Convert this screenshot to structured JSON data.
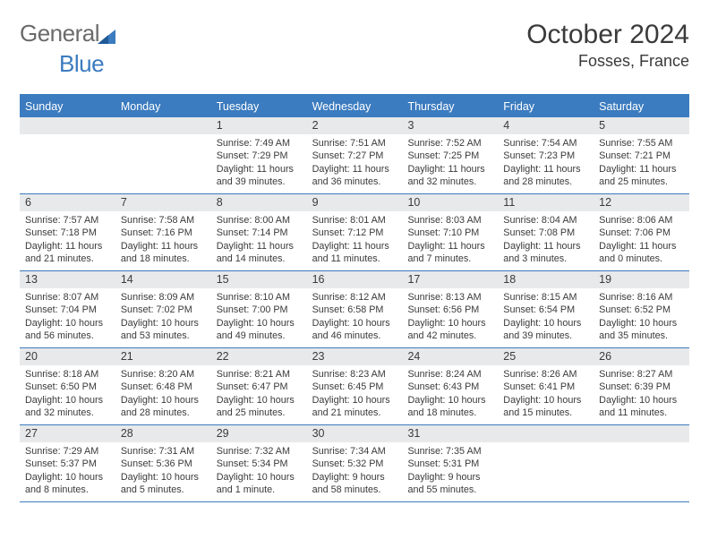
{
  "brand": {
    "general": "General",
    "blue": "Blue"
  },
  "title": {
    "month": "October 2024",
    "location": "Fosses, France"
  },
  "colors": {
    "accent": "#3b7bbf",
    "daynum_bg": "#e8e9ea",
    "text": "#3a3a3a",
    "weekday_text": "#ffffff",
    "background": "#ffffff"
  },
  "typography": {
    "title_fontsize": 30,
    "location_fontsize": 18,
    "weekday_fontsize": 12.5,
    "daynum_fontsize": 12.5,
    "body_fontsize": 10.8
  },
  "calendar": {
    "weekdays": [
      "Sunday",
      "Monday",
      "Tuesday",
      "Wednesday",
      "Thursday",
      "Friday",
      "Saturday"
    ],
    "weeks": [
      [
        null,
        null,
        {
          "n": "1",
          "sunrise": "7:49 AM",
          "sunset": "7:29 PM",
          "daylight": "11 hours and 39 minutes."
        },
        {
          "n": "2",
          "sunrise": "7:51 AM",
          "sunset": "7:27 PM",
          "daylight": "11 hours and 36 minutes."
        },
        {
          "n": "3",
          "sunrise": "7:52 AM",
          "sunset": "7:25 PM",
          "daylight": "11 hours and 32 minutes."
        },
        {
          "n": "4",
          "sunrise": "7:54 AM",
          "sunset": "7:23 PM",
          "daylight": "11 hours and 28 minutes."
        },
        {
          "n": "5",
          "sunrise": "7:55 AM",
          "sunset": "7:21 PM",
          "daylight": "11 hours and 25 minutes."
        }
      ],
      [
        {
          "n": "6",
          "sunrise": "7:57 AM",
          "sunset": "7:18 PM",
          "daylight": "11 hours and 21 minutes."
        },
        {
          "n": "7",
          "sunrise": "7:58 AM",
          "sunset": "7:16 PM",
          "daylight": "11 hours and 18 minutes."
        },
        {
          "n": "8",
          "sunrise": "8:00 AM",
          "sunset": "7:14 PM",
          "daylight": "11 hours and 14 minutes."
        },
        {
          "n": "9",
          "sunrise": "8:01 AM",
          "sunset": "7:12 PM",
          "daylight": "11 hours and 11 minutes."
        },
        {
          "n": "10",
          "sunrise": "8:03 AM",
          "sunset": "7:10 PM",
          "daylight": "11 hours and 7 minutes."
        },
        {
          "n": "11",
          "sunrise": "8:04 AM",
          "sunset": "7:08 PM",
          "daylight": "11 hours and 3 minutes."
        },
        {
          "n": "12",
          "sunrise": "8:06 AM",
          "sunset": "7:06 PM",
          "daylight": "11 hours and 0 minutes."
        }
      ],
      [
        {
          "n": "13",
          "sunrise": "8:07 AM",
          "sunset": "7:04 PM",
          "daylight": "10 hours and 56 minutes."
        },
        {
          "n": "14",
          "sunrise": "8:09 AM",
          "sunset": "7:02 PM",
          "daylight": "10 hours and 53 minutes."
        },
        {
          "n": "15",
          "sunrise": "8:10 AM",
          "sunset": "7:00 PM",
          "daylight": "10 hours and 49 minutes."
        },
        {
          "n": "16",
          "sunrise": "8:12 AM",
          "sunset": "6:58 PM",
          "daylight": "10 hours and 46 minutes."
        },
        {
          "n": "17",
          "sunrise": "8:13 AM",
          "sunset": "6:56 PM",
          "daylight": "10 hours and 42 minutes."
        },
        {
          "n": "18",
          "sunrise": "8:15 AM",
          "sunset": "6:54 PM",
          "daylight": "10 hours and 39 minutes."
        },
        {
          "n": "19",
          "sunrise": "8:16 AM",
          "sunset": "6:52 PM",
          "daylight": "10 hours and 35 minutes."
        }
      ],
      [
        {
          "n": "20",
          "sunrise": "8:18 AM",
          "sunset": "6:50 PM",
          "daylight": "10 hours and 32 minutes."
        },
        {
          "n": "21",
          "sunrise": "8:20 AM",
          "sunset": "6:48 PM",
          "daylight": "10 hours and 28 minutes."
        },
        {
          "n": "22",
          "sunrise": "8:21 AM",
          "sunset": "6:47 PM",
          "daylight": "10 hours and 25 minutes."
        },
        {
          "n": "23",
          "sunrise": "8:23 AM",
          "sunset": "6:45 PM",
          "daylight": "10 hours and 21 minutes."
        },
        {
          "n": "24",
          "sunrise": "8:24 AM",
          "sunset": "6:43 PM",
          "daylight": "10 hours and 18 minutes."
        },
        {
          "n": "25",
          "sunrise": "8:26 AM",
          "sunset": "6:41 PM",
          "daylight": "10 hours and 15 minutes."
        },
        {
          "n": "26",
          "sunrise": "8:27 AM",
          "sunset": "6:39 PM",
          "daylight": "10 hours and 11 minutes."
        }
      ],
      [
        {
          "n": "27",
          "sunrise": "7:29 AM",
          "sunset": "5:37 PM",
          "daylight": "10 hours and 8 minutes."
        },
        {
          "n": "28",
          "sunrise": "7:31 AM",
          "sunset": "5:36 PM",
          "daylight": "10 hours and 5 minutes."
        },
        {
          "n": "29",
          "sunrise": "7:32 AM",
          "sunset": "5:34 PM",
          "daylight": "10 hours and 1 minute."
        },
        {
          "n": "30",
          "sunrise": "7:34 AM",
          "sunset": "5:32 PM",
          "daylight": "9 hours and 58 minutes."
        },
        {
          "n": "31",
          "sunrise": "7:35 AM",
          "sunset": "5:31 PM",
          "daylight": "9 hours and 55 minutes."
        },
        null,
        null
      ]
    ],
    "labels": {
      "sunrise": "Sunrise:",
      "sunset": "Sunset:",
      "daylight": "Daylight:"
    }
  }
}
